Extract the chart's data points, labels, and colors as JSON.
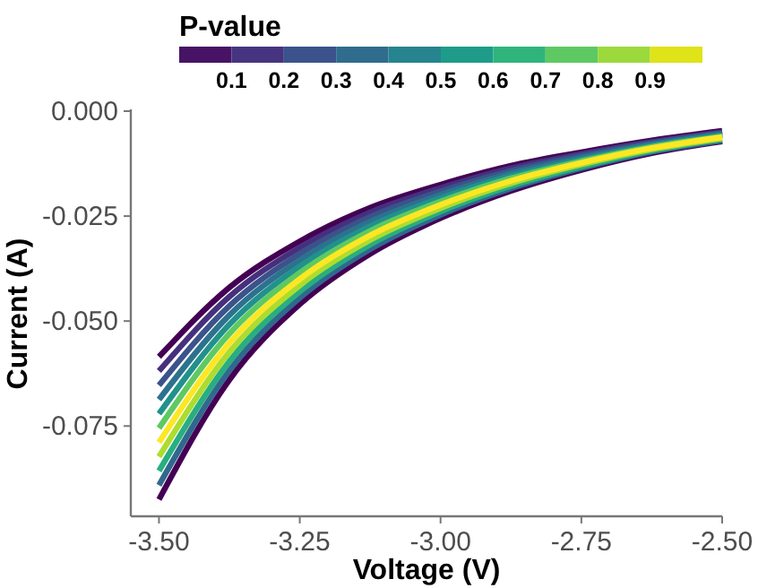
{
  "chart_data": {
    "type": "line",
    "xlabel": "Voltage (V)",
    "ylabel": "Current (A)",
    "clabel": "P-value",
    "clim": [
      0,
      1
    ],
    "cticks": [
      0.1,
      0.2,
      0.3,
      0.4,
      0.5,
      0.6,
      0.7,
      0.8,
      0.9
    ],
    "x": [
      -3.5,
      -3.375,
      -3.25,
      -3.125,
      -3.0,
      -2.875,
      -2.75,
      -2.625,
      -2.5
    ],
    "xlim": [
      -3.55,
      -2.5
    ],
    "xticks": [
      {
        "value": -3.5,
        "label": "-3.50"
      },
      {
        "value": -3.25,
        "label": "-3.25"
      },
      {
        "value": -3,
        "label": "-3.00"
      },
      {
        "value": -2.75,
        "label": "-2.75"
      },
      {
        "value": -2.5,
        "label": "-2.50"
      }
    ],
    "ylim": [
      -0.0965,
      0
    ],
    "yticks": [
      {
        "value": -0.075,
        "label": "-0.075"
      },
      {
        "value": -0.05,
        "label": "-0.050"
      },
      {
        "value": -0.025,
        "label": "-0.025"
      },
      {
        "value": 0,
        "label": "0.000"
      }
    ],
    "grid": false,
    "line_style": "solid",
    "series": [
      {
        "color": "#440154",
        "values": [
          -0.0585,
          -0.042,
          -0.031,
          -0.023,
          -0.0175,
          -0.013,
          -0.0098,
          -0.007,
          -0.0047
        ]
      },
      {
        "color": "#46307e",
        "values": [
          -0.0619,
          -0.0442,
          -0.0325,
          -0.0241,
          -0.0183,
          -0.0136,
          -0.0102,
          -0.0073,
          -0.005
        ]
      },
      {
        "color": "#3b528b",
        "values": [
          -0.0653,
          -0.0464,
          -0.034,
          -0.0252,
          -0.0191,
          -0.0142,
          -0.0106,
          -0.0076,
          -0.0052
        ]
      },
      {
        "color": "#2c728e",
        "values": [
          -0.0687,
          -0.0486,
          -0.0355,
          -0.0263,
          -0.0199,
          -0.0148,
          -0.0111,
          -0.0079,
          -0.0055
        ]
      },
      {
        "color": "#21918c",
        "values": [
          -0.0721,
          -0.0508,
          -0.037,
          -0.0274,
          -0.0207,
          -0.0154,
          -0.0115,
          -0.0082,
          -0.0057
        ]
      },
      {
        "color": "#5ec962",
        "values": [
          -0.0755,
          -0.053,
          -0.0385,
          -0.0285,
          -0.0215,
          -0.016,
          -0.0119,
          -0.0085,
          -0.006
        ]
      },
      {
        "color": "#440154",
        "values": [
          -0.0925,
          -0.064,
          -0.046,
          -0.034,
          -0.0255,
          -0.019,
          -0.014,
          -0.01,
          -0.0072
        ]
      },
      {
        "color": "#31688e",
        "values": [
          -0.0891,
          -0.0618,
          -0.0445,
          -0.0329,
          -0.0247,
          -0.0184,
          -0.0136,
          -0.0097,
          -0.007
        ]
      },
      {
        "color": "#28ae80",
        "values": [
          -0.0857,
          -0.0596,
          -0.043,
          -0.0318,
          -0.0239,
          -0.0178,
          -0.0132,
          -0.0094,
          -0.0067
        ]
      },
      {
        "color": "#addc30",
        "values": [
          -0.0823,
          -0.0574,
          -0.0415,
          -0.0307,
          -0.0231,
          -0.0172,
          -0.0127,
          -0.0091,
          -0.0065
        ]
      },
      {
        "color": "#fde725",
        "values": [
          -0.0789,
          -0.0552,
          -0.04,
          -0.0296,
          -0.0223,
          -0.0166,
          -0.0123,
          -0.0088,
          -0.0062
        ]
      }
    ]
  }
}
